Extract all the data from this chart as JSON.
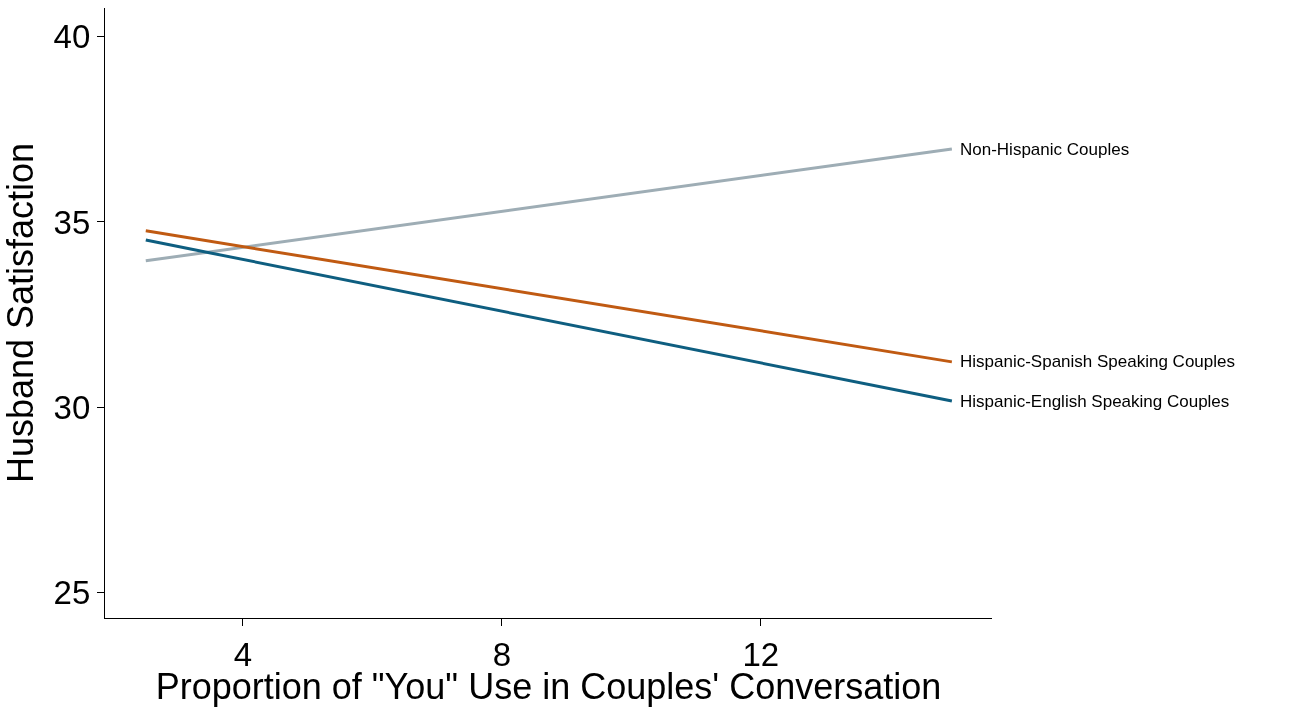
{
  "chart_data": {
    "type": "line",
    "xlabel": "Proportion of \"You\" Use in Couples' Conversation",
    "ylabel": "Husband Satisfaction",
    "x": [
      2.5,
      14.95
    ],
    "series": [
      {
        "name": "Non-Hispanic Couples",
        "color": "#9eadb5",
        "values": [
          33.95,
          36.97
        ]
      },
      {
        "name": "Hispanic-Spanish Speaking Couples",
        "color": "#c05a12",
        "values": [
          34.76,
          31.22
        ]
      },
      {
        "name": "Hispanic-English Speaking Couples",
        "color": "#0e5e80",
        "values": [
          34.51,
          30.16
        ]
      }
    ],
    "xlim": [
      1.87,
      15.57
    ],
    "xticks": [
      4,
      8,
      12
    ],
    "ylim": [
      24.3,
      40.78
    ],
    "yticks": [
      25,
      30,
      35,
      40
    ],
    "grid": false,
    "legend": false,
    "marker": "none",
    "line_style": "solid"
  }
}
